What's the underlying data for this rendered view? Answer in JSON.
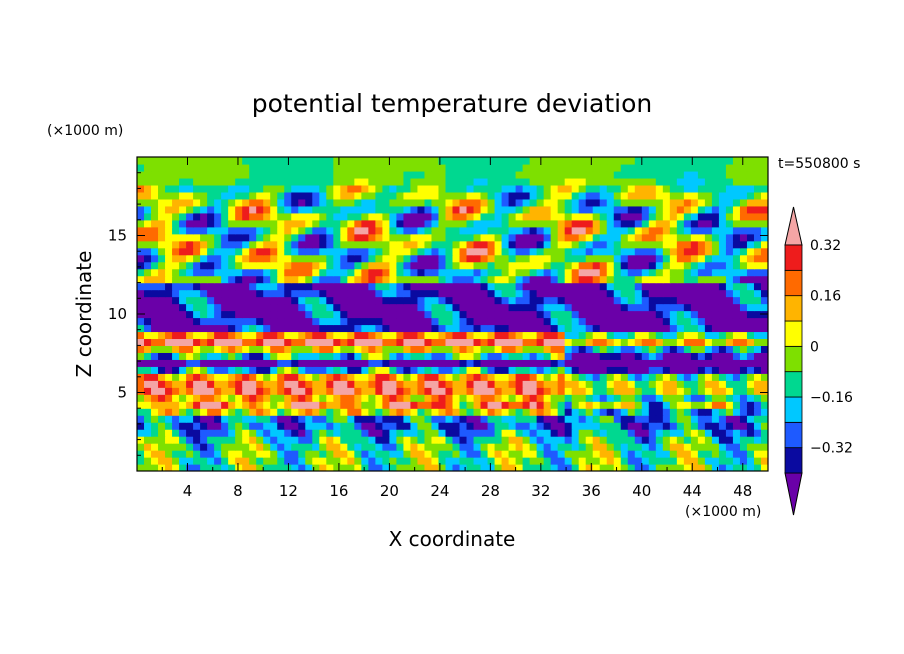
{
  "chart_data": {
    "type": "heatmap",
    "title": "potential temperature deviation",
    "xlabel": "X coordinate",
    "ylabel": "Z coordinate",
    "x_units": "(×1000 m)",
    "y_units": "(×1000 m)",
    "time_label": "t=550800 s",
    "xlim": [
      0,
      50
    ],
    "ylim": [
      0,
      20
    ],
    "x_ticks": [
      4,
      8,
      12,
      16,
      20,
      24,
      28,
      32,
      36,
      40,
      44,
      48
    ],
    "y_ticks": [
      5,
      10,
      15
    ],
    "grid": false,
    "colorbar": {
      "placement": "right",
      "levels": [
        -0.4,
        -0.32,
        -0.24,
        -0.16,
        -0.08,
        0,
        0.08,
        0.16,
        0.24,
        0.32,
        0.4
      ],
      "tick_values": [
        0.32,
        0.16,
        0,
        -0.16,
        -0.32
      ],
      "tick_labels": [
        "0.32",
        "0.16",
        "0",
        "−0.16",
        "−0.32"
      ],
      "colors": [
        "#6a00a8",
        "#0a0aa0",
        "#1e5aff",
        "#00c8ff",
        "#00d890",
        "#7ee000",
        "#ffff00",
        "#ffb400",
        "#ff6a00",
        "#ee1c1c",
        "#f4a5a5"
      ]
    }
  }
}
